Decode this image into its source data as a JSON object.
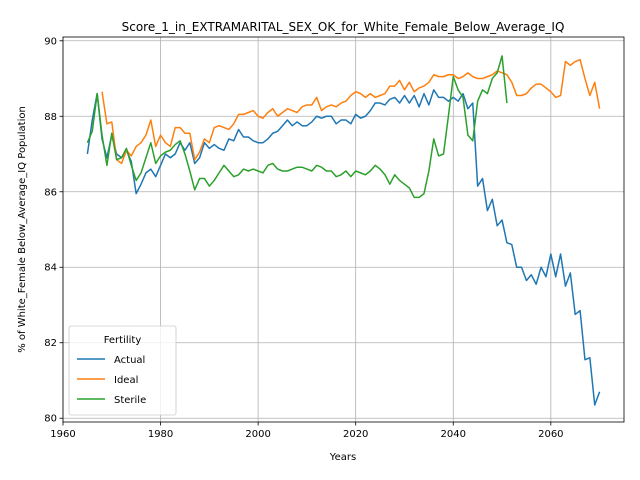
{
  "chart_data": {
    "type": "line",
    "title": "Score_1_in_EXTRAMARITAL_SEX_OK_for_White_Female_Below_Average_IQ",
    "xlabel": "Years",
    "ylabel": "% of White_Female Below_Average_IQ Population",
    "xlim": [
      1960,
      2075
    ],
    "ylim": [
      79.9,
      90.1
    ],
    "xticks": [
      1960,
      1980,
      2000,
      2020,
      2040,
      2060
    ],
    "yticks": [
      80,
      82,
      84,
      86,
      88,
      90
    ],
    "grid": true,
    "legend": {
      "title": "Fertility",
      "position": "lower-left"
    },
    "series": [
      {
        "name": "Actual",
        "color": "#1f77b4",
        "points": [
          [
            1965,
            87.0
          ],
          [
            1966,
            87.9
          ],
          [
            1967,
            88.6
          ],
          [
            1968,
            87.4
          ],
          [
            1969,
            86.9
          ],
          [
            1970,
            87.5
          ],
          [
            1971,
            87.0
          ],
          [
            1972,
            86.9
          ],
          [
            1973,
            87.1
          ],
          [
            1974,
            86.8
          ],
          [
            1975,
            85.95
          ],
          [
            1976,
            86.2
          ],
          [
            1977,
            86.5
          ],
          [
            1978,
            86.6
          ],
          [
            1979,
            86.4
          ],
          [
            1980,
            86.7
          ],
          [
            1981,
            87.0
          ],
          [
            1982,
            86.9
          ],
          [
            1983,
            87.0
          ],
          [
            1984,
            87.3
          ],
          [
            1985,
            87.1
          ],
          [
            1986,
            87.3
          ],
          [
            1987,
            86.75
          ],
          [
            1988,
            86.9
          ],
          [
            1989,
            87.3
          ],
          [
            1990,
            87.15
          ],
          [
            1991,
            87.25
          ],
          [
            1992,
            87.15
          ],
          [
            1993,
            87.1
          ],
          [
            1994,
            87.4
          ],
          [
            1995,
            87.35
          ],
          [
            1996,
            87.65
          ],
          [
            1997,
            87.45
          ],
          [
            1998,
            87.45
          ],
          [
            1999,
            87.35
          ],
          [
            2000,
            87.3
          ],
          [
            2001,
            87.3
          ],
          [
            2002,
            87.4
          ],
          [
            2003,
            87.55
          ],
          [
            2004,
            87.6
          ],
          [
            2005,
            87.75
          ],
          [
            2006,
            87.9
          ],
          [
            2007,
            87.75
          ],
          [
            2008,
            87.85
          ],
          [
            2009,
            87.75
          ],
          [
            2010,
            87.75
          ],
          [
            2011,
            87.85
          ],
          [
            2012,
            88.0
          ],
          [
            2013,
            87.95
          ],
          [
            2014,
            88.0
          ],
          [
            2015,
            88.0
          ],
          [
            2016,
            87.8
          ],
          [
            2017,
            87.9
          ],
          [
            2018,
            87.9
          ],
          [
            2019,
            87.8
          ],
          [
            2020,
            88.05
          ],
          [
            2021,
            87.95
          ],
          [
            2022,
            88.0
          ],
          [
            2023,
            88.15
          ],
          [
            2024,
            88.35
          ],
          [
            2025,
            88.35
          ],
          [
            2026,
            88.3
          ],
          [
            2027,
            88.45
          ],
          [
            2028,
            88.5
          ],
          [
            2029,
            88.35
          ],
          [
            2030,
            88.55
          ],
          [
            2031,
            88.35
          ],
          [
            2032,
            88.55
          ],
          [
            2033,
            88.25
          ],
          [
            2034,
            88.6
          ],
          [
            2035,
            88.3
          ],
          [
            2036,
            88.7
          ],
          [
            2037,
            88.5
          ],
          [
            2038,
            88.5
          ],
          [
            2039,
            88.4
          ],
          [
            2040,
            88.5
          ],
          [
            2041,
            88.4
          ],
          [
            2042,
            88.6
          ],
          [
            2043,
            88.2
          ],
          [
            2044,
            88.35
          ],
          [
            2045,
            86.15
          ],
          [
            2046,
            86.35
          ],
          [
            2047,
            85.5
          ],
          [
            2048,
            85.8
          ],
          [
            2049,
            85.1
          ],
          [
            2050,
            85.25
          ],
          [
            2051,
            84.65
          ],
          [
            2052,
            84.6
          ],
          [
            2053,
            84.0
          ],
          [
            2054,
            84.0
          ],
          [
            2055,
            83.65
          ],
          [
            2056,
            83.8
          ],
          [
            2057,
            83.55
          ],
          [
            2058,
            84.0
          ],
          [
            2059,
            83.75
          ],
          [
            2060,
            84.35
          ],
          [
            2061,
            83.75
          ],
          [
            2062,
            84.35
          ],
          [
            2063,
            83.5
          ],
          [
            2064,
            83.85
          ],
          [
            2065,
            82.75
          ],
          [
            2066,
            82.85
          ],
          [
            2067,
            81.55
          ],
          [
            2068,
            81.6
          ],
          [
            2069,
            80.35
          ],
          [
            2070,
            80.7
          ]
        ]
      },
      {
        "name": "Ideal",
        "color": "#ff7f0e",
        "points": [
          [
            1968,
            88.65
          ],
          [
            1969,
            87.8
          ],
          [
            1970,
            87.85
          ],
          [
            1971,
            86.85
          ],
          [
            1972,
            86.75
          ],
          [
            1973,
            87.1
          ],
          [
            1974,
            86.95
          ],
          [
            1975,
            87.2
          ],
          [
            1976,
            87.3
          ],
          [
            1977,
            87.5
          ],
          [
            1978,
            87.9
          ],
          [
            1979,
            87.2
          ],
          [
            1980,
            87.5
          ],
          [
            1981,
            87.3
          ],
          [
            1982,
            87.2
          ],
          [
            1983,
            87.7
          ],
          [
            1984,
            87.7
          ],
          [
            1985,
            87.55
          ],
          [
            1986,
            87.55
          ],
          [
            1987,
            86.85
          ],
          [
            1988,
            87.05
          ],
          [
            1989,
            87.4
          ],
          [
            1990,
            87.3
          ],
          [
            1991,
            87.7
          ],
          [
            1992,
            87.75
          ],
          [
            1993,
            87.7
          ],
          [
            1994,
            87.65
          ],
          [
            1995,
            87.8
          ],
          [
            1996,
            88.05
          ],
          [
            1997,
            88.05
          ],
          [
            1998,
            88.1
          ],
          [
            1999,
            88.15
          ],
          [
            2000,
            88.0
          ],
          [
            2001,
            87.95
          ],
          [
            2002,
            88.1
          ],
          [
            2003,
            88.2
          ],
          [
            2004,
            88.0
          ],
          [
            2005,
            88.1
          ],
          [
            2006,
            88.2
          ],
          [
            2007,
            88.15
          ],
          [
            2008,
            88.1
          ],
          [
            2009,
            88.25
          ],
          [
            2010,
            88.3
          ],
          [
            2011,
            88.3
          ],
          [
            2012,
            88.5
          ],
          [
            2013,
            88.15
          ],
          [
            2014,
            88.25
          ],
          [
            2015,
            88.3
          ],
          [
            2016,
            88.25
          ],
          [
            2017,
            88.35
          ],
          [
            2018,
            88.4
          ],
          [
            2019,
            88.55
          ],
          [
            2020,
            88.65
          ],
          [
            2021,
            88.6
          ],
          [
            2022,
            88.5
          ],
          [
            2023,
            88.6
          ],
          [
            2024,
            88.5
          ],
          [
            2025,
            88.55
          ],
          [
            2026,
            88.6
          ],
          [
            2027,
            88.8
          ],
          [
            2028,
            88.8
          ],
          [
            2029,
            88.95
          ],
          [
            2030,
            88.7
          ],
          [
            2031,
            88.9
          ],
          [
            2032,
            88.65
          ],
          [
            2033,
            88.75
          ],
          [
            2034,
            88.8
          ],
          [
            2035,
            88.9
          ],
          [
            2036,
            89.1
          ],
          [
            2037,
            89.05
          ],
          [
            2038,
            89.05
          ],
          [
            2039,
            89.1
          ],
          [
            2040,
            89.1
          ],
          [
            2041,
            89.0
          ],
          [
            2042,
            89.05
          ],
          [
            2043,
            89.15
          ],
          [
            2044,
            89.05
          ],
          [
            2045,
            89.0
          ],
          [
            2046,
            89.0
          ],
          [
            2047,
            89.05
          ],
          [
            2048,
            89.1
          ],
          [
            2049,
            89.2
          ],
          [
            2050,
            89.15
          ],
          [
            2051,
            89.1
          ],
          [
            2052,
            88.9
          ],
          [
            2053,
            88.55
          ],
          [
            2054,
            88.55
          ],
          [
            2055,
            88.6
          ],
          [
            2056,
            88.75
          ],
          [
            2057,
            88.85
          ],
          [
            2058,
            88.85
          ],
          [
            2059,
            88.75
          ],
          [
            2060,
            88.65
          ],
          [
            2061,
            88.5
          ],
          [
            2062,
            88.55
          ],
          [
            2063,
            89.45
          ],
          [
            2064,
            89.35
          ],
          [
            2065,
            89.45
          ],
          [
            2066,
            89.5
          ],
          [
            2067,
            89.0
          ],
          [
            2068,
            88.55
          ],
          [
            2069,
            88.9
          ],
          [
            2070,
            88.2
          ]
        ]
      },
      {
        "name": "Sterile",
        "color": "#2ca02c",
        "points": [
          [
            1965,
            87.3
          ],
          [
            1966,
            87.6
          ],
          [
            1967,
            88.6
          ],
          [
            1968,
            87.5
          ],
          [
            1969,
            86.7
          ],
          [
            1970,
            87.55
          ],
          [
            1971,
            86.85
          ],
          [
            1972,
            86.9
          ],
          [
            1973,
            87.15
          ],
          [
            1974,
            86.7
          ],
          [
            1975,
            86.3
          ],
          [
            1976,
            86.5
          ],
          [
            1977,
            86.9
          ],
          [
            1978,
            87.3
          ],
          [
            1979,
            86.75
          ],
          [
            1980,
            86.95
          ],
          [
            1981,
            87.05
          ],
          [
            1982,
            87.1
          ],
          [
            1983,
            87.25
          ],
          [
            1984,
            87.35
          ],
          [
            1985,
            87.0
          ],
          [
            1986,
            86.55
          ],
          [
            1987,
            86.05
          ],
          [
            1988,
            86.35
          ],
          [
            1989,
            86.35
          ],
          [
            1990,
            86.15
          ],
          [
            1991,
            86.3
          ],
          [
            1992,
            86.5
          ],
          [
            1993,
            86.7
          ],
          [
            1994,
            86.55
          ],
          [
            1995,
            86.4
          ],
          [
            1996,
            86.45
          ],
          [
            1997,
            86.6
          ],
          [
            1998,
            86.55
          ],
          [
            1999,
            86.6
          ],
          [
            2000,
            86.55
          ],
          [
            2001,
            86.5
          ],
          [
            2002,
            86.7
          ],
          [
            2003,
            86.75
          ],
          [
            2004,
            86.6
          ],
          [
            2005,
            86.55
          ],
          [
            2006,
            86.55
          ],
          [
            2007,
            86.6
          ],
          [
            2008,
            86.65
          ],
          [
            2009,
            86.65
          ],
          [
            2010,
            86.6
          ],
          [
            2011,
            86.55
          ],
          [
            2012,
            86.7
          ],
          [
            2013,
            86.65
          ],
          [
            2014,
            86.55
          ],
          [
            2015,
            86.55
          ],
          [
            2016,
            86.4
          ],
          [
            2017,
            86.45
          ],
          [
            2018,
            86.55
          ],
          [
            2019,
            86.4
          ],
          [
            2020,
            86.55
          ],
          [
            2021,
            86.5
          ],
          [
            2022,
            86.45
          ],
          [
            2023,
            86.55
          ],
          [
            2024,
            86.7
          ],
          [
            2025,
            86.6
          ],
          [
            2026,
            86.45
          ],
          [
            2027,
            86.2
          ],
          [
            2028,
            86.45
          ],
          [
            2029,
            86.3
          ],
          [
            2030,
            86.2
          ],
          [
            2031,
            86.1
          ],
          [
            2032,
            85.85
          ],
          [
            2033,
            85.85
          ],
          [
            2034,
            85.95
          ],
          [
            2035,
            86.55
          ],
          [
            2036,
            87.4
          ],
          [
            2037,
            86.95
          ],
          [
            2038,
            87.0
          ],
          [
            2039,
            88.0
          ],
          [
            2040,
            89.05
          ],
          [
            2041,
            88.7
          ],
          [
            2042,
            88.5
          ],
          [
            2043,
            87.5
          ],
          [
            2044,
            87.35
          ],
          [
            2045,
            88.4
          ],
          [
            2046,
            88.7
          ],
          [
            2047,
            88.6
          ],
          [
            2048,
            89.0
          ],
          [
            2049,
            89.15
          ],
          [
            2050,
            89.6
          ],
          [
            2051,
            88.35
          ]
        ]
      }
    ]
  }
}
